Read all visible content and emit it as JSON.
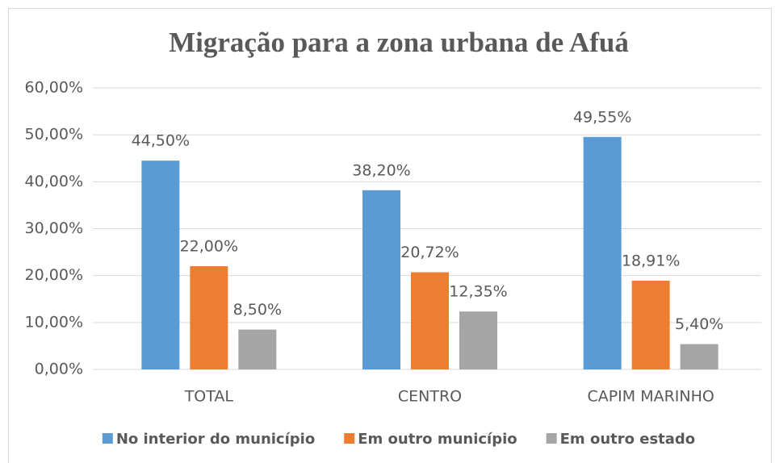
{
  "chart_data": {
    "type": "bar",
    "title": "Migração para a zona urbana de Afuá",
    "categories": [
      "TOTAL",
      "CENTRO",
      "CAPIM MARINHO"
    ],
    "series": [
      {
        "name": "No interior do município",
        "color": "#5b9bd5",
        "values": [
          44.5,
          38.2,
          49.55
        ],
        "value_labels": [
          "44,50%",
          "38,20%",
          "49,55%"
        ]
      },
      {
        "name": "Em outro município",
        "color": "#ed7d31",
        "values": [
          22.0,
          20.72,
          18.91
        ],
        "value_labels": [
          "22,00%",
          "20,72%",
          "18,91%"
        ]
      },
      {
        "name": "Em outro estado",
        "color": "#a5a5a5",
        "values": [
          8.5,
          12.35,
          5.4
        ],
        "value_labels": [
          "8,50%",
          "12,35%",
          "5,40%"
        ]
      }
    ],
    "ylim": [
      0,
      60
    ],
    "yticks": [
      {
        "value": 0,
        "label": "0,00%"
      },
      {
        "value": 10,
        "label": "10,00%"
      },
      {
        "value": 20,
        "label": "20,00%"
      },
      {
        "value": 30,
        "label": "30,00%"
      },
      {
        "value": 40,
        "label": "40,00%"
      },
      {
        "value": 50,
        "label": "50,00%"
      },
      {
        "value": 60,
        "label": "60,00%"
      }
    ],
    "grid": true,
    "legend": "bottom"
  }
}
